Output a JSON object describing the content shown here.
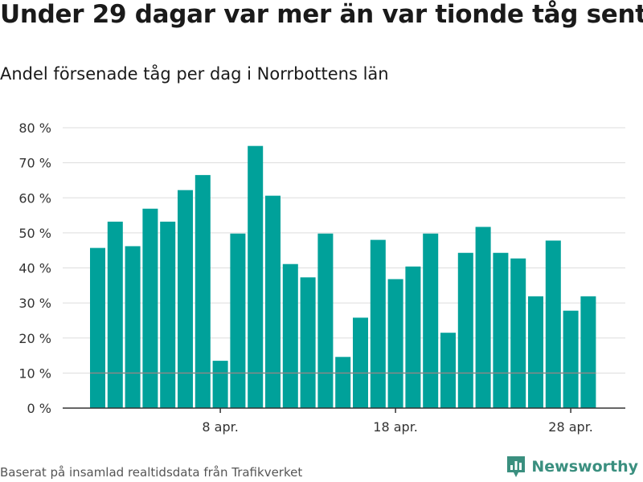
{
  "title": "Under 29 dagar var mer än var tionde tåg sent",
  "subtitle": "Andel försenade tåg per dag i Norrbottens län",
  "footer": "Baserat på insamlad realtidsdata från Trafikverket",
  "brand": {
    "name": "Newsworthy",
    "icon": "bar-chart-logo-icon"
  },
  "colors": {
    "bar": "#00a19a",
    "gridline": "#dddddd",
    "reference_line": "#888888",
    "axis": "#333333"
  },
  "chart_data": {
    "type": "bar",
    "x": [
      1,
      2,
      3,
      4,
      5,
      6,
      7,
      8,
      9,
      10,
      11,
      12,
      13,
      14,
      15,
      16,
      17,
      18,
      19,
      20,
      21,
      22,
      23,
      24,
      25,
      26,
      27,
      28,
      29
    ],
    "values": [
      45.7,
      53.2,
      46.2,
      56.9,
      53.2,
      62.2,
      66.5,
      13.5,
      49.8,
      74.8,
      60.6,
      41.1,
      37.3,
      49.8,
      14.6,
      25.8,
      48.0,
      36.8,
      40.4,
      49.8,
      21.5,
      44.3,
      51.7,
      44.3,
      42.7,
      31.9,
      47.8,
      27.8,
      31.9
    ],
    "xticks": [
      {
        "x": 8,
        "label": "8 apr."
      },
      {
        "x": 18,
        "label": "18 apr."
      },
      {
        "x": 28,
        "label": "28 apr."
      }
    ],
    "yticks": [
      0,
      10,
      20,
      30,
      40,
      50,
      60,
      70,
      80
    ],
    "ytick_labels": [
      "0 %",
      "10 %",
      "20 %",
      "30 %",
      "40 %",
      "50 %",
      "60 %",
      "70 %",
      "80 %"
    ],
    "ylim": [
      0,
      80
    ],
    "reference_line": 10,
    "grid": true
  }
}
